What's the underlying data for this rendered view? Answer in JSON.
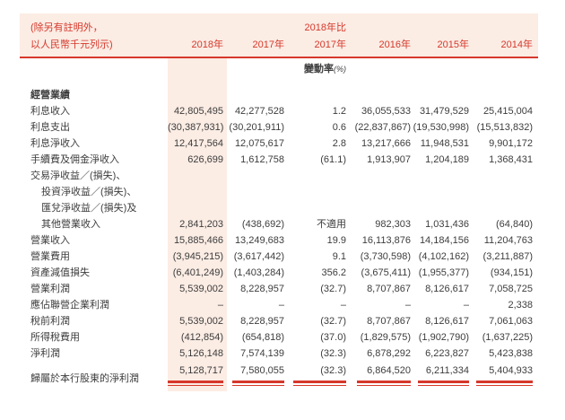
{
  "colors": {
    "accent": "#d6382b",
    "band": "#fbece4"
  },
  "note": {
    "line1": "(除另有註明外，",
    "line2": "以人民幣千元列示)"
  },
  "header": {
    "compare_top": "2018年比",
    "years": [
      "2018年",
      "2017年",
      "2017年",
      "2016年",
      "2015年",
      "2014年"
    ],
    "change_label": "變動率",
    "change_unit": "(%)"
  },
  "table": {
    "section_title": "經營業績",
    "rows": [
      {
        "label": "利息收入",
        "values": [
          "42,805,495",
          "42,277,528",
          "1.2",
          "36,055,533",
          "31,479,529",
          "25,415,004"
        ]
      },
      {
        "label": "利息支出",
        "values": [
          "(30,387,931)",
          "(30,201,911)",
          "0.6",
          "(22,837,867)",
          "(19,530,998)",
          "(15,513,832)"
        ]
      },
      {
        "label": "利息淨收入",
        "values": [
          "12,417,564",
          "12,075,617",
          "2.8",
          "13,217,666",
          "11,948,531",
          "9,901,172"
        ]
      },
      {
        "label": "手續費及佣金淨收入",
        "values": [
          "626,699",
          "1,612,758",
          "(61.1)",
          "1,913,907",
          "1,204,189",
          "1,368,431"
        ]
      },
      {
        "label": "交易淨收益／(損失)、",
        "values": [
          "",
          "",
          "",
          "",
          "",
          ""
        ]
      },
      {
        "label": "投資淨收益／(損失)、",
        "indent": true,
        "values": [
          "",
          "",
          "",
          "",
          "",
          ""
        ]
      },
      {
        "label": "匯兌淨收益／(損失)及",
        "indent": true,
        "values": [
          "",
          "",
          "",
          "",
          "",
          ""
        ]
      },
      {
        "label": "其他營業收入",
        "indent": true,
        "values": [
          "2,841,203",
          "(438,692)",
          "不適用",
          "982,303",
          "1,031,436",
          "(64,840)"
        ]
      },
      {
        "label": "營業收入",
        "values": [
          "15,885,466",
          "13,249,683",
          "19.9",
          "16,113,876",
          "14,184,156",
          "11,204,763"
        ]
      },
      {
        "label": "營業費用",
        "values": [
          "(3,945,215)",
          "(3,617,442)",
          "9.1",
          "(3,730,598)",
          "(4,102,162)",
          "(3,211,887)"
        ]
      },
      {
        "label": "資產減值損失",
        "values": [
          "(6,401,249)",
          "(1,403,284)",
          "356.2",
          "(3,675,411)",
          "(1,955,377)",
          "(934,151)"
        ]
      },
      {
        "label": "營業利潤",
        "values": [
          "5,539,002",
          "8,228,957",
          "(32.7)",
          "8,707,867",
          "8,126,617",
          "7,058,725"
        ]
      },
      {
        "label": "應佔聯營企業利潤",
        "values": [
          "–",
          "–",
          "–",
          "–",
          "–",
          "2,338"
        ]
      },
      {
        "label": "稅前利潤",
        "values": [
          "5,539,002",
          "8,228,957",
          "(32.7)",
          "8,707,867",
          "8,126,617",
          "7,061,063"
        ]
      },
      {
        "label": "所得稅費用",
        "values": [
          "(412,854)",
          "(654,818)",
          "(37.0)",
          "(1,829,575)",
          "(1,902,790)",
          "(1,637,225)"
        ]
      },
      {
        "label": "淨利潤",
        "values": [
          "5,126,148",
          "7,574,139",
          "(32.3)",
          "6,878,292",
          "6,223,827",
          "5,423,838"
        ]
      },
      {
        "label": "歸屬於本行股東的淨利潤",
        "final": true,
        "values": [
          "5,128,717",
          "7,580,055",
          "(32.3)",
          "6,864,520",
          "6,211,334",
          "5,404,933"
        ]
      }
    ]
  }
}
